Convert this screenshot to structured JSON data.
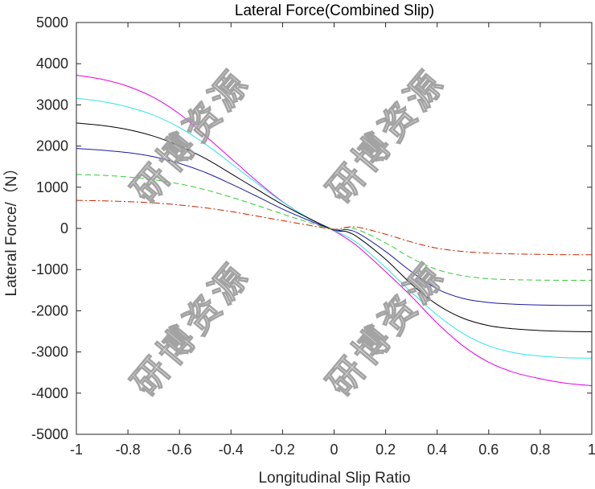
{
  "chart_data": {
    "type": "line",
    "title": "Lateral Force(Combined Slip)",
    "xlabel": "Longitudinal Slip Ratio",
    "ylabel": "Lateral Force/（N）",
    "xlim": [
      -1,
      1
    ],
    "ylim": [
      -5000,
      5000
    ],
    "xticks": [
      "-1",
      "-0.8",
      "-0.6",
      "-0.4",
      "-0.2",
      "0",
      "0.2",
      "0.4",
      "0.6",
      "0.8",
      "1"
    ],
    "yticks": [
      "-5000",
      "-4000",
      "-3000",
      "-2000",
      "-1000",
      "0",
      "1000",
      "2000",
      "3000",
      "4000",
      "5000"
    ],
    "x": [
      -1.0,
      -0.9,
      -0.8,
      -0.7,
      -0.6,
      -0.5,
      -0.4,
      -0.3,
      -0.2,
      -0.1,
      0.0,
      0.05,
      0.1,
      0.2,
      0.3,
      0.4,
      0.5,
      0.6,
      0.7,
      0.8,
      0.9,
      1.0
    ],
    "series": [
      {
        "name": "magenta",
        "color": "#e600e6",
        "dash": "solid",
        "values": [
          3720,
          3620,
          3450,
          3180,
          2780,
          2250,
          1700,
          1150,
          650,
          250,
          -60,
          -250,
          -480,
          -1050,
          -1650,
          -2300,
          -2850,
          -3250,
          -3500,
          -3650,
          -3760,
          -3820
        ]
      },
      {
        "name": "cyan",
        "color": "#2ee6e6",
        "dash": "solid",
        "values": [
          3160,
          3080,
          2950,
          2750,
          2450,
          2050,
          1580,
          1100,
          640,
          260,
          -50,
          -200,
          -400,
          -950,
          -1550,
          -2100,
          -2550,
          -2850,
          -3020,
          -3100,
          -3140,
          -3150
        ]
      },
      {
        "name": "black",
        "color": "#000000",
        "dash": "solid",
        "values": [
          2560,
          2500,
          2400,
          2240,
          2000,
          1700,
          1330,
          950,
          580,
          250,
          -40,
          -80,
          -250,
          -750,
          -1350,
          -1850,
          -2180,
          -2360,
          -2440,
          -2480,
          -2500,
          -2510
        ]
      },
      {
        "name": "navy",
        "color": "#1a1aa0",
        "dash": "solid",
        "values": [
          1940,
          1900,
          1840,
          1740,
          1580,
          1360,
          1080,
          780,
          470,
          200,
          -40,
          -30,
          -140,
          -560,
          -1050,
          -1470,
          -1700,
          -1800,
          -1840,
          -1860,
          -1870,
          -1870
        ]
      },
      {
        "name": "green",
        "color": "#33cc33",
        "dash": "dashed",
        "values": [
          1310,
          1290,
          1250,
          1180,
          1080,
          940,
          760,
          560,
          350,
          150,
          -30,
          20,
          -50,
          -350,
          -720,
          -1000,
          -1150,
          -1220,
          -1245,
          -1255,
          -1260,
          -1260
        ]
      },
      {
        "name": "red",
        "color": "#cc2200",
        "dash": "dashdot",
        "values": [
          680,
          670,
          650,
          620,
          570,
          500,
          410,
          300,
          190,
          80,
          -20,
          30,
          20,
          -140,
          -330,
          -480,
          -560,
          -600,
          -620,
          -630,
          -640,
          -640
        ]
      }
    ],
    "grid": false,
    "legend": "none"
  },
  "watermark": {
    "text": "研博资源",
    "color": "#9a9a9a"
  }
}
